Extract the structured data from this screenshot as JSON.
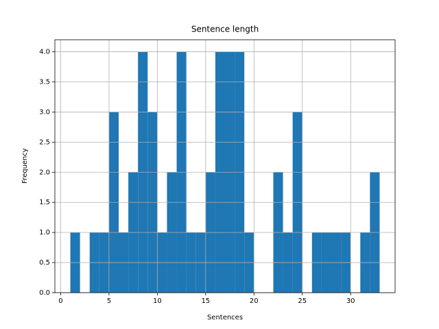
{
  "chart_data": {
    "type": "histogram",
    "title": "Sentence length",
    "xlabel": "Sentences",
    "ylabel": "Frequency",
    "bins": [
      1,
      2,
      3,
      4,
      5,
      6,
      7,
      8,
      9,
      10,
      11,
      12,
      13,
      14,
      15,
      16,
      17,
      18,
      19,
      20,
      21,
      22,
      23,
      24,
      25,
      26,
      27,
      28,
      29,
      30,
      31,
      32,
      33
    ],
    "counts": [
      1,
      0,
      1,
      1,
      3,
      1,
      2,
      4,
      3,
      1,
      2,
      4,
      1,
      1,
      2,
      4,
      4,
      4,
      1,
      0,
      0,
      2,
      1,
      3,
      0,
      1,
      1,
      1,
      1,
      0,
      1,
      2
    ],
    "color": "#1f77b4",
    "xlim": [
      -0.6,
      34.6
    ],
    "xticks": [
      0,
      5,
      10,
      15,
      20,
      25,
      30
    ],
    "ylim": [
      0,
      4.2
    ],
    "yticks": [
      {
        "value": 0,
        "label": "0.0"
      },
      {
        "value": 0.5,
        "label": "0.5"
      },
      {
        "value": 1,
        "label": "1.0"
      },
      {
        "value": 1.5,
        "label": "1.5"
      },
      {
        "value": 2,
        "label": "2.0"
      },
      {
        "value": 2.5,
        "label": "2.5"
      },
      {
        "value": 3,
        "label": "3.0"
      },
      {
        "value": 3.5,
        "label": "3.5"
      },
      {
        "value": 4,
        "label": "4.0"
      }
    ],
    "grid": true
  }
}
